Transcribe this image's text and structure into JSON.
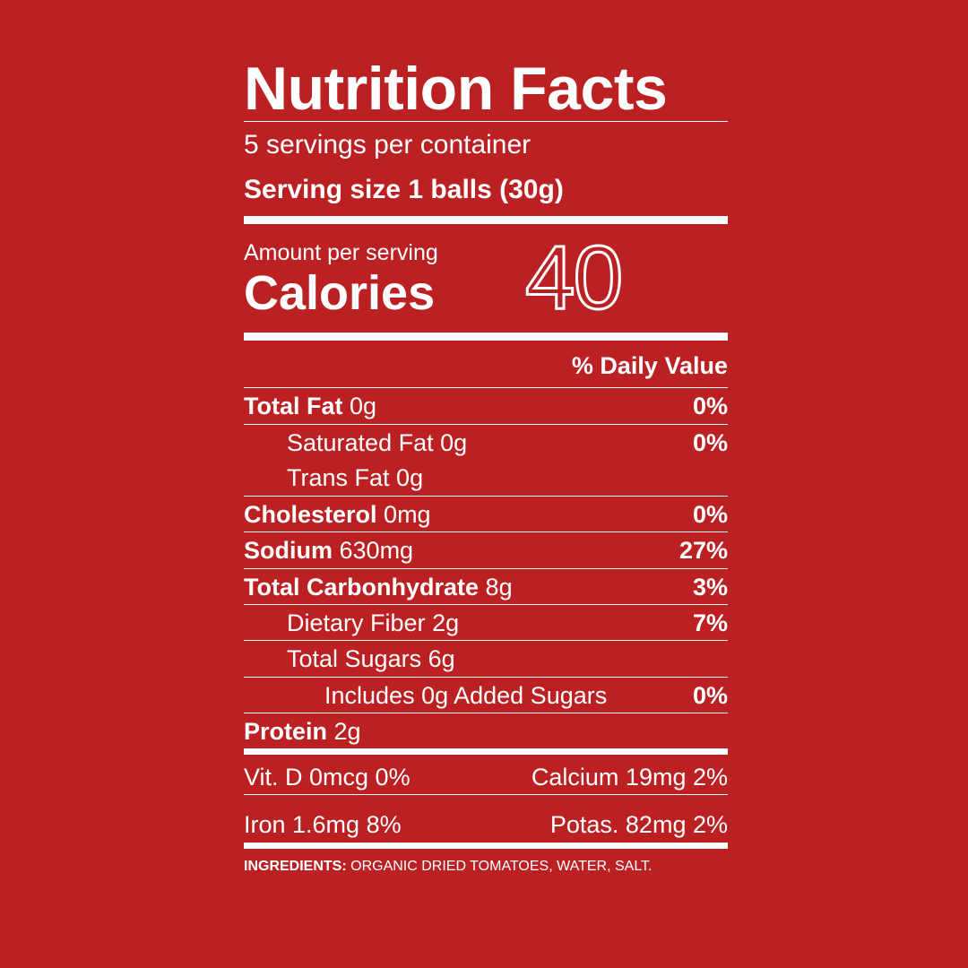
{
  "title": "Nutrition Facts",
  "servings_per_container": "5 servings per container",
  "serving_size": "Serving size 1 balls (30g)",
  "amount_per_serving": "Amount per serving",
  "calories_label": "Calories",
  "calories_value": "40",
  "daily_value_header": "% Daily Value",
  "nutrients": [
    {
      "name": "Total Fat",
      "amount": "0g",
      "dv": "0%"
    },
    {
      "name": "Saturated Fat",
      "amount": "0g",
      "dv": "0%"
    },
    {
      "name": "Trans Fat",
      "amount": "0g",
      "dv": ""
    },
    {
      "name": "Cholesterol",
      "amount": "0mg",
      "dv": "0%"
    },
    {
      "name": "Sodium",
      "amount": "630mg",
      "dv": "27%"
    },
    {
      "name": "Total Carbonhydrate",
      "amount": "8g",
      "dv": "3%"
    },
    {
      "name": "Dietary Fiber",
      "amount": "2g",
      "dv": "7%"
    },
    {
      "name": "Total Sugars",
      "amount": "6g",
      "dv": ""
    },
    {
      "name": "Includes 0g Added Sugars",
      "amount": "",
      "dv": "0%"
    },
    {
      "name": "Protein",
      "amount": "2g",
      "dv": ""
    }
  ],
  "vitamins": {
    "vit_d": "Vit. D 0mcg 0%",
    "calcium": "Calcium 19mg 2%",
    "iron": "Iron 1.6mg 8%",
    "potassium": "Potas. 82mg 2%"
  },
  "ingredients": {
    "label": "INGREDIENTS:",
    "text": "ORGANIC DRIED TOMATOES, WATER, SALT."
  },
  "colors": {
    "background": "#bb2023",
    "text": "#ffffff"
  }
}
